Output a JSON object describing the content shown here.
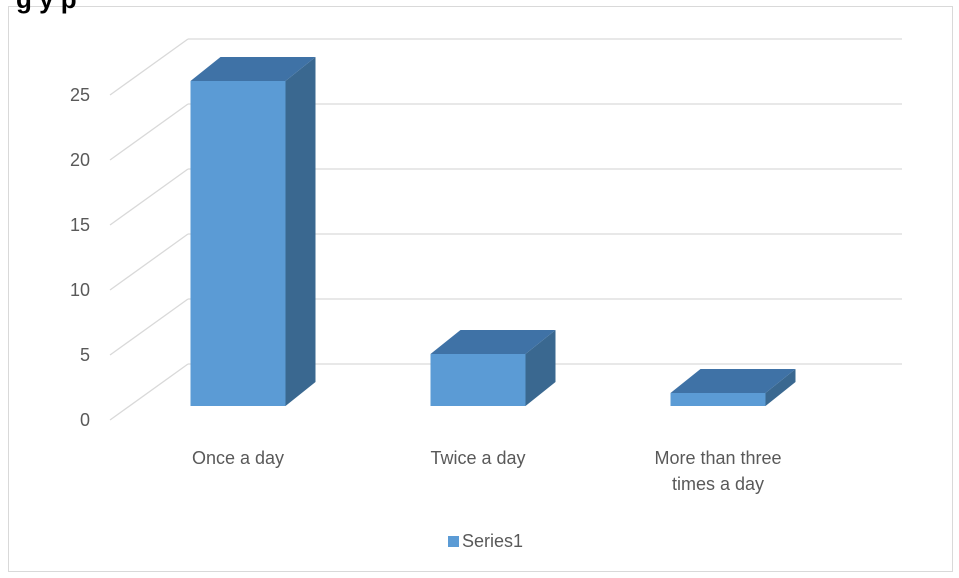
{
  "chart_data": {
    "type": "bar",
    "style": "3d-column",
    "title": "",
    "title_visible_fragment": "g   y   p",
    "categories": [
      [
        "Once a day"
      ],
      [
        "Twice a day"
      ],
      [
        "More than three",
        "times a day"
      ]
    ],
    "series": [
      {
        "name": "Series1",
        "values": [
          25,
          4,
          1
        ],
        "color": "#5b9bd5",
        "side_color": "#3a6890",
        "top_color": "#3f72a6"
      }
    ],
    "ylim": [
      0,
      25
    ],
    "yticks": [
      "0",
      "5",
      "10",
      "15",
      "20",
      "25"
    ],
    "ytick_values": [
      0,
      5,
      10,
      15,
      20,
      25
    ],
    "grid": true,
    "legend": "bottom",
    "colors": {
      "grid": "#d9d9d9",
      "text": "#595959",
      "frame": "#d9d9d9"
    }
  }
}
